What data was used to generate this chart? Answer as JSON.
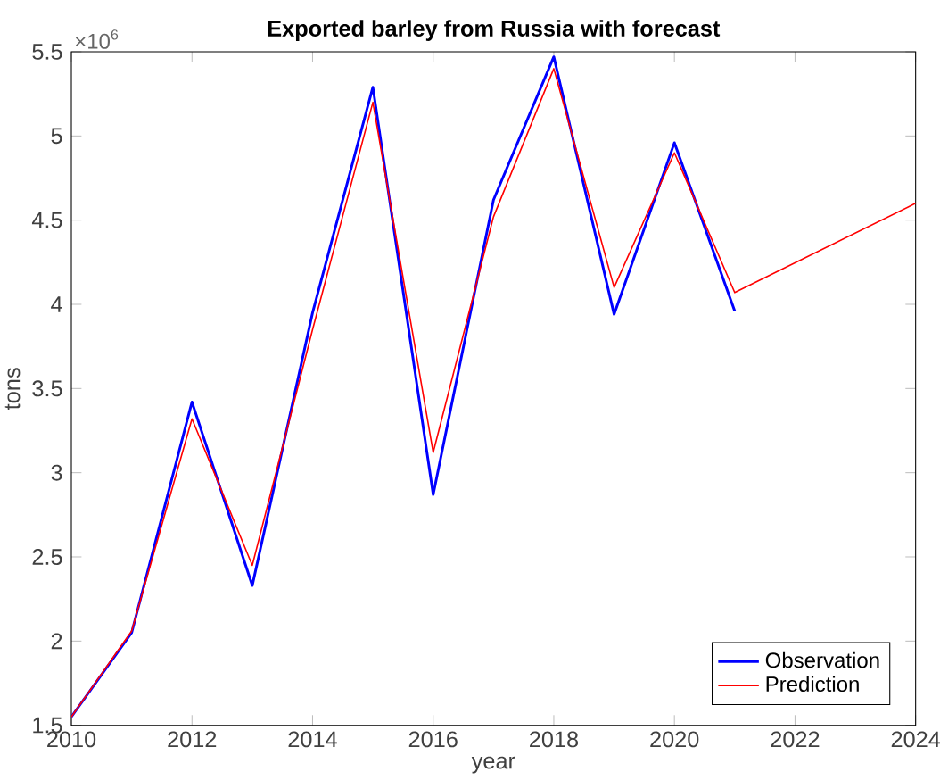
{
  "chart_data": {
    "type": "line",
    "title": "Exported barley from Russia with forecast",
    "xlabel": "year",
    "ylabel": "tons",
    "annotations": [
      "×10$^{6}$"
    ],
    "x": [
      2010,
      2011,
      2012,
      2013,
      2014,
      2015,
      2016,
      2017,
      2018,
      2019,
      2020,
      2021
    ],
    "series": [
      {
        "name": "Observation",
        "color": "#0000ff",
        "values": [
          1.55,
          2.05,
          3.42,
          2.33,
          3.95,
          5.29,
          2.87,
          4.62,
          5.47,
          3.94,
          4.96,
          3.96
        ]
      },
      {
        "name": "Prediction",
        "color": "#ff0000",
        "x": [
          2010,
          2011,
          2012,
          2013,
          2014,
          2015,
          2016,
          2017,
          2018,
          2019,
          2020,
          2021,
          2024
        ],
        "values": [
          1.55,
          2.06,
          3.32,
          2.45,
          3.85,
          5.2,
          3.12,
          4.52,
          5.4,
          4.1,
          4.9,
          4.07,
          4.6
        ]
      }
    ],
    "xlim": [
      2010,
      2024
    ],
    "xticks": [
      2010,
      2012,
      2014,
      2016,
      2018,
      2020,
      2022,
      2024
    ],
    "ylim": [
      1.5,
      5.5
    ],
    "yticks": [
      1.5,
      2,
      2.5,
      3,
      3.5,
      4,
      4.5,
      5,
      5.5
    ],
    "grid": false,
    "legend": "bottom right",
    "marker": "none",
    "line_style": "solid"
  }
}
